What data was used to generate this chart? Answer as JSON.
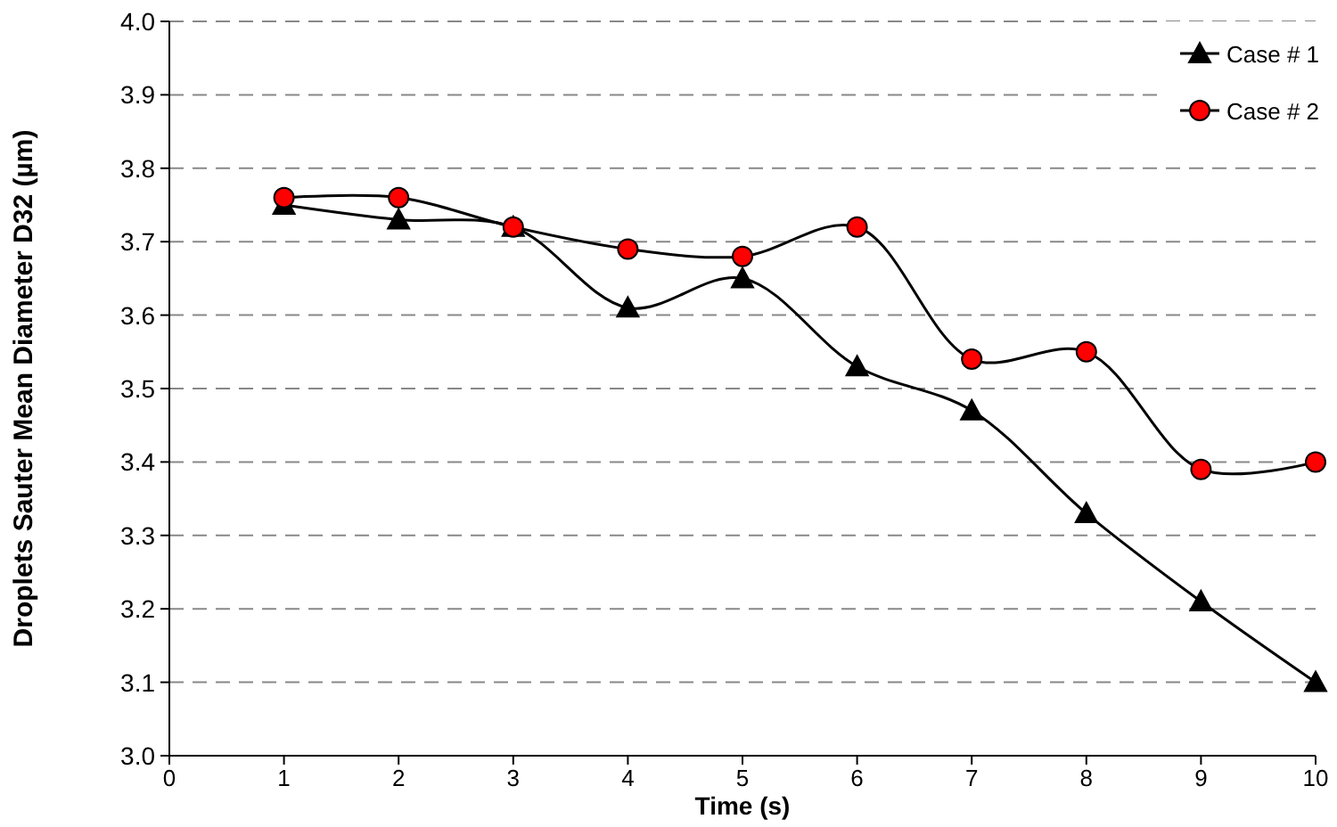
{
  "chart_data": {
    "type": "line",
    "xlabel": "Time (s)",
    "ylabel": "Droplets Sauter Mean Diameter D32 (µm)",
    "x": [
      1,
      2,
      3,
      4,
      5,
      6,
      7,
      8,
      9,
      10
    ],
    "series": [
      {
        "name": "Case # 1",
        "color": "#000000",
        "marker": "triangle",
        "values": [
          3.75,
          3.73,
          3.72,
          3.61,
          3.65,
          3.53,
          3.47,
          3.33,
          3.21,
          3.1
        ]
      },
      {
        "name": "Case # 2",
        "color": "#ff0000",
        "marker": "circle",
        "values": [
          3.76,
          3.76,
          3.72,
          3.69,
          3.68,
          3.72,
          3.54,
          3.55,
          3.39,
          3.4
        ]
      }
    ],
    "xlim": [
      0,
      10
    ],
    "xticks": [
      0,
      1,
      2,
      3,
      4,
      5,
      6,
      7,
      8,
      9,
      10
    ],
    "ylim": [
      3,
      4
    ],
    "yticks": [
      {
        "value": 3,
        "label": "3.0"
      },
      3.1,
      3.2,
      3.3,
      3.4,
      3.5,
      3.6,
      3.7,
      3.8,
      3.9,
      {
        "value": 4,
        "label": "4.0"
      }
    ],
    "grid": "y",
    "legend": "top right",
    "line_style": "solid"
  }
}
